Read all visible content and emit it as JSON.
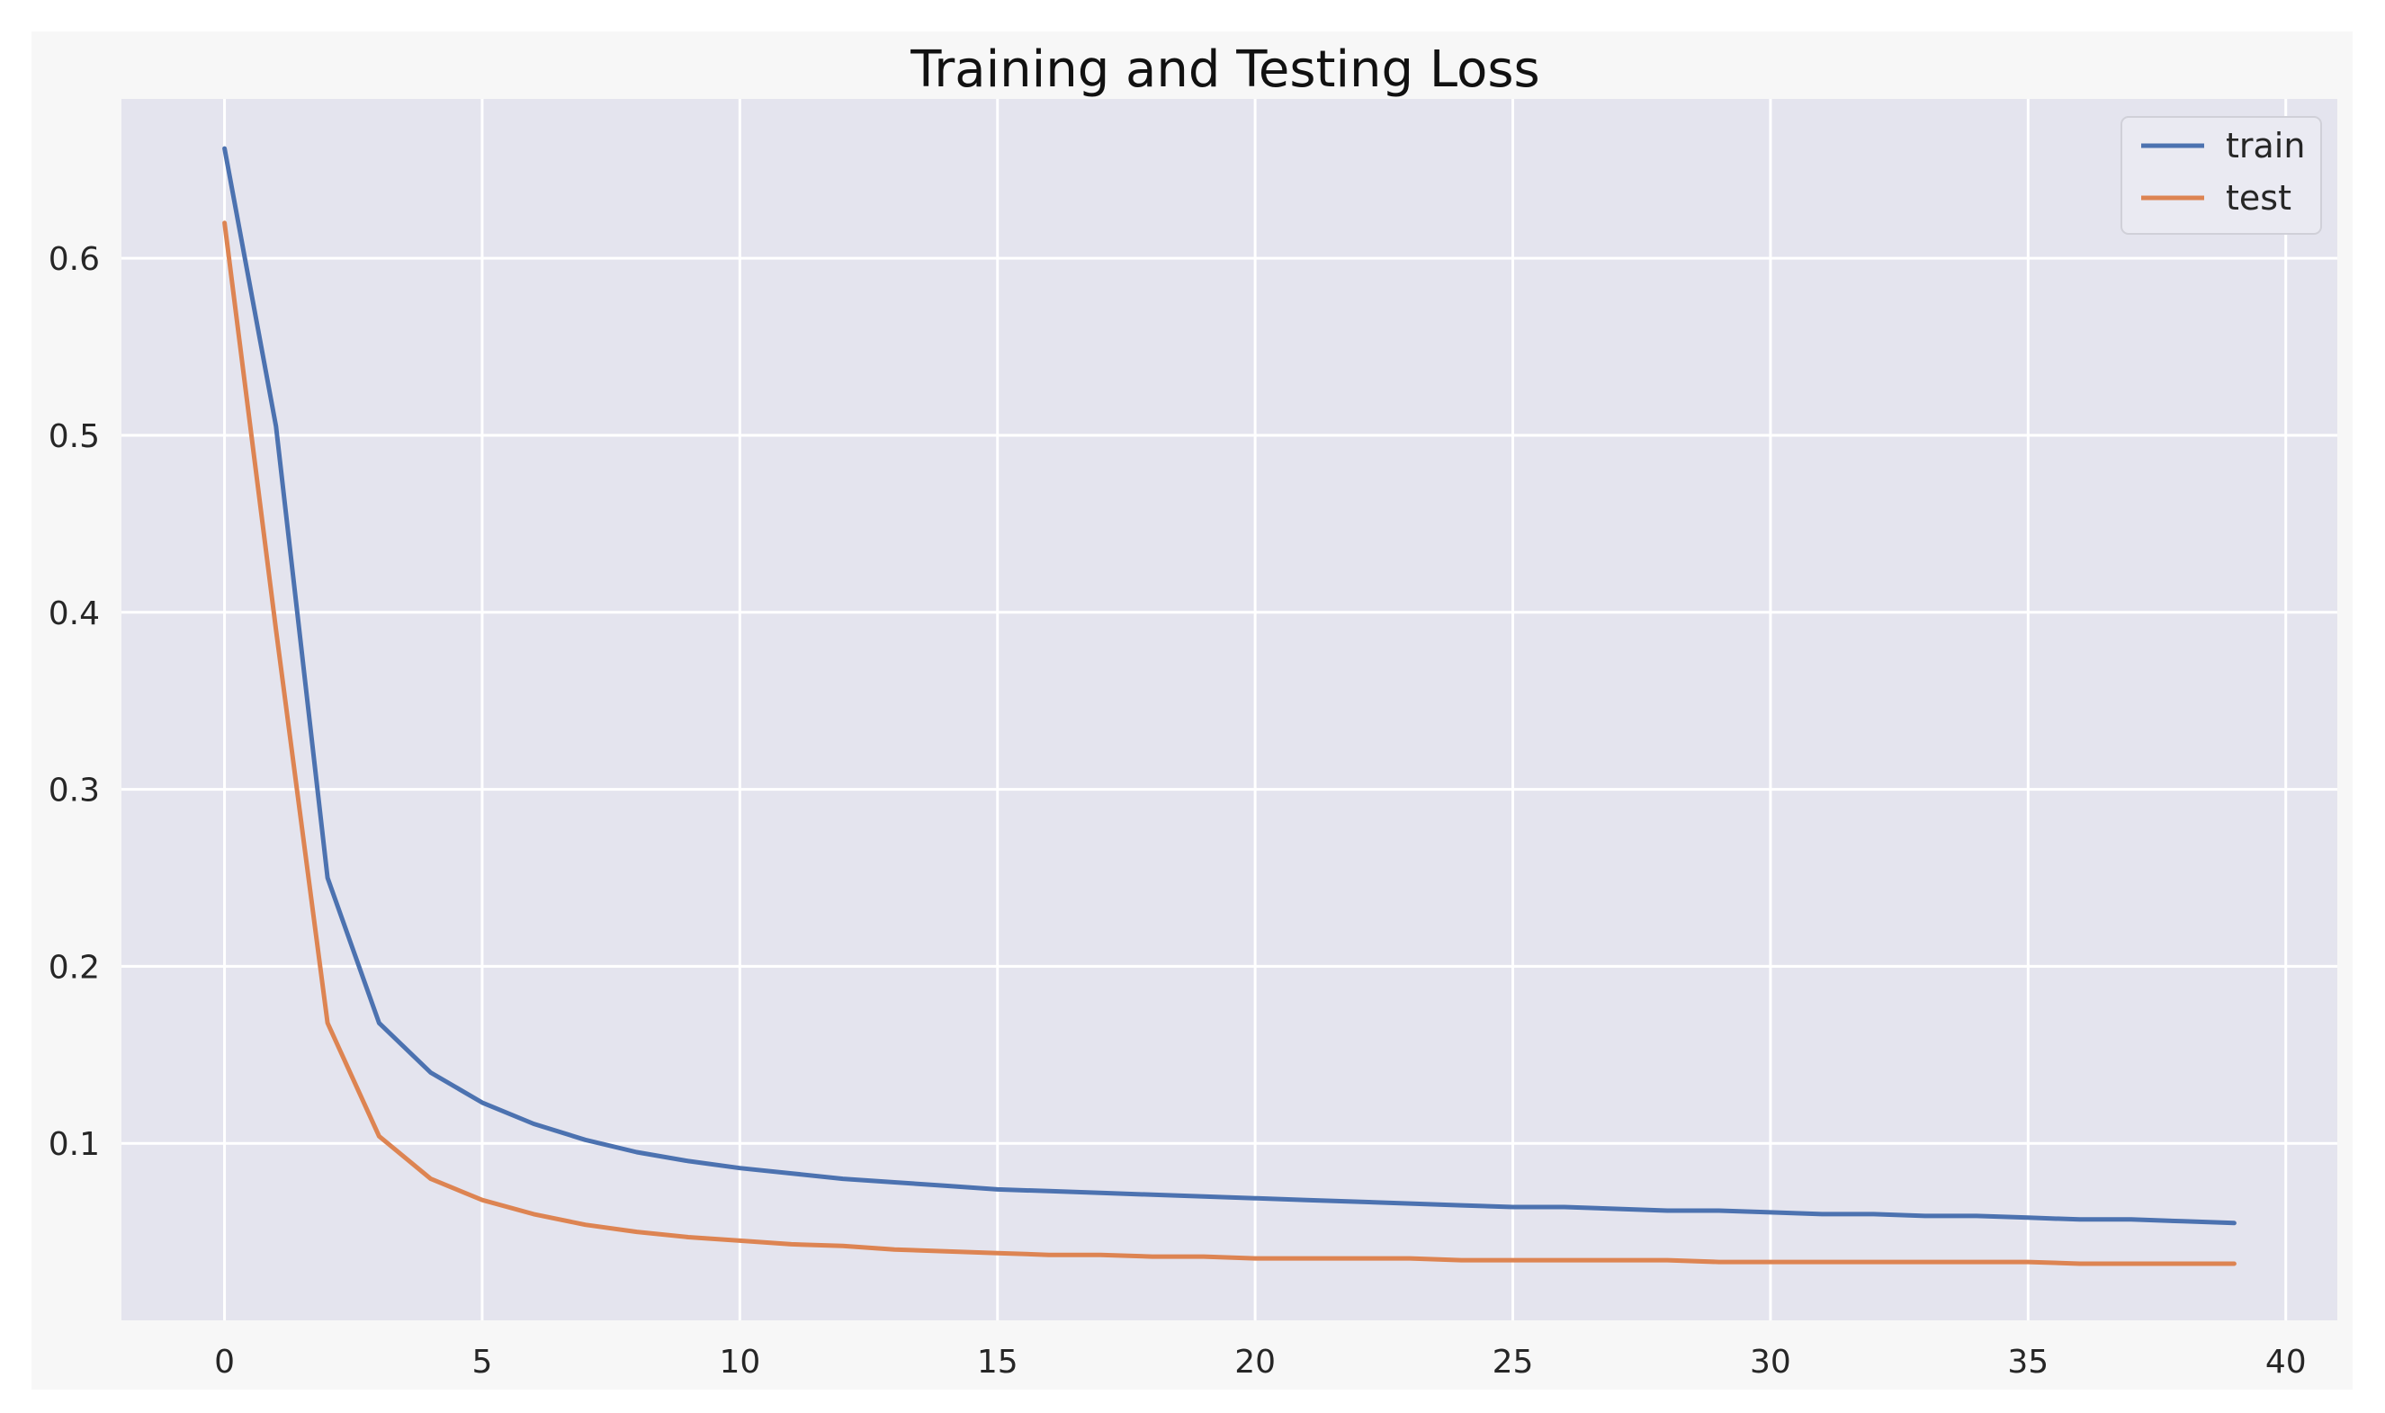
{
  "chart_data": {
    "type": "line",
    "title": "Training and Testing Loss",
    "xlabel": "",
    "ylabel": "",
    "xlim": [
      -2,
      41
    ],
    "ylim": [
      0.0,
      0.69
    ],
    "x_ticks": [
      0,
      5,
      10,
      15,
      20,
      25,
      30,
      35,
      40
    ],
    "y_ticks": [
      0.1,
      0.2,
      0.3,
      0.4,
      0.5,
      0.6
    ],
    "grid": true,
    "legend_position": "top-right",
    "x": [
      0,
      1,
      2,
      3,
      4,
      5,
      6,
      7,
      8,
      9,
      10,
      11,
      12,
      13,
      14,
      15,
      16,
      17,
      18,
      19,
      20,
      21,
      22,
      23,
      24,
      25,
      26,
      27,
      28,
      29,
      30,
      31,
      32,
      33,
      34,
      35,
      36,
      37,
      38,
      39
    ],
    "series": [
      {
        "name": "train",
        "color": "#4c72b0",
        "values": [
          0.662,
          0.505,
          0.25,
          0.168,
          0.14,
          0.123,
          0.111,
          0.102,
          0.095,
          0.09,
          0.086,
          0.083,
          0.08,
          0.078,
          0.076,
          0.074,
          0.073,
          0.072,
          0.071,
          0.07,
          0.069,
          0.068,
          0.067,
          0.066,
          0.065,
          0.064,
          0.064,
          0.063,
          0.062,
          0.062,
          0.061,
          0.06,
          0.06,
          0.059,
          0.059,
          0.058,
          0.057,
          0.057,
          0.056,
          0.055
        ]
      },
      {
        "name": "test",
        "color": "#dd8452",
        "values": [
          0.62,
          0.39,
          0.168,
          0.104,
          0.08,
          0.068,
          0.06,
          0.054,
          0.05,
          0.047,
          0.045,
          0.043,
          0.042,
          0.04,
          0.039,
          0.038,
          0.037,
          0.037,
          0.036,
          0.036,
          0.035,
          0.035,
          0.035,
          0.035,
          0.034,
          0.034,
          0.034,
          0.034,
          0.034,
          0.033,
          0.033,
          0.033,
          0.033,
          0.033,
          0.033,
          0.033,
          0.032,
          0.032,
          0.032,
          0.032
        ]
      }
    ]
  }
}
